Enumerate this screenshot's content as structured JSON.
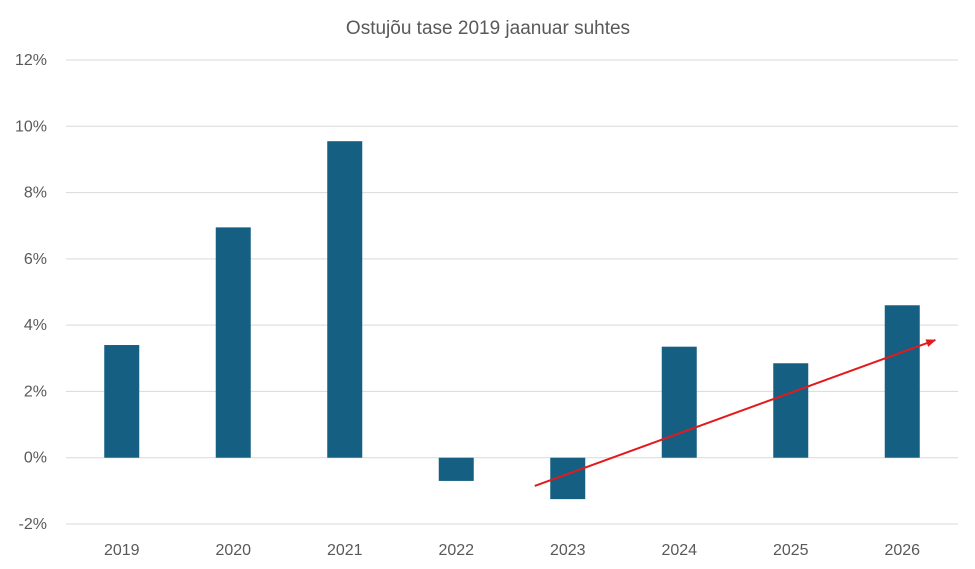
{
  "chart_data": {
    "type": "bar",
    "title": "Ostujõu tase 2019 jaanuar suhtes",
    "categories": [
      "2019",
      "2020",
      "2021",
      "2022",
      "2023",
      "2024",
      "2025",
      "2026"
    ],
    "values": [
      3.4,
      6.95,
      9.55,
      -0.7,
      -1.25,
      3.35,
      2.85,
      4.6
    ],
    "ylim": [
      -2,
      12
    ],
    "yticks": [
      "-2%",
      "0%",
      "2%",
      "4%",
      "6%",
      "8%",
      "10%",
      "12%"
    ],
    "ytick_values": [
      -2,
      0,
      2,
      4,
      6,
      8,
      10,
      12
    ],
    "grid": true,
    "legend": "none",
    "colors": {
      "bar": "#155f82",
      "trend_arrow": "#e31a1c"
    },
    "annotations": [
      {
        "type": "arrow",
        "from": {
          "x": "2023",
          "y": -0.85
        },
        "to": {
          "x": "2026",
          "y": 3.55
        }
      }
    ]
  }
}
